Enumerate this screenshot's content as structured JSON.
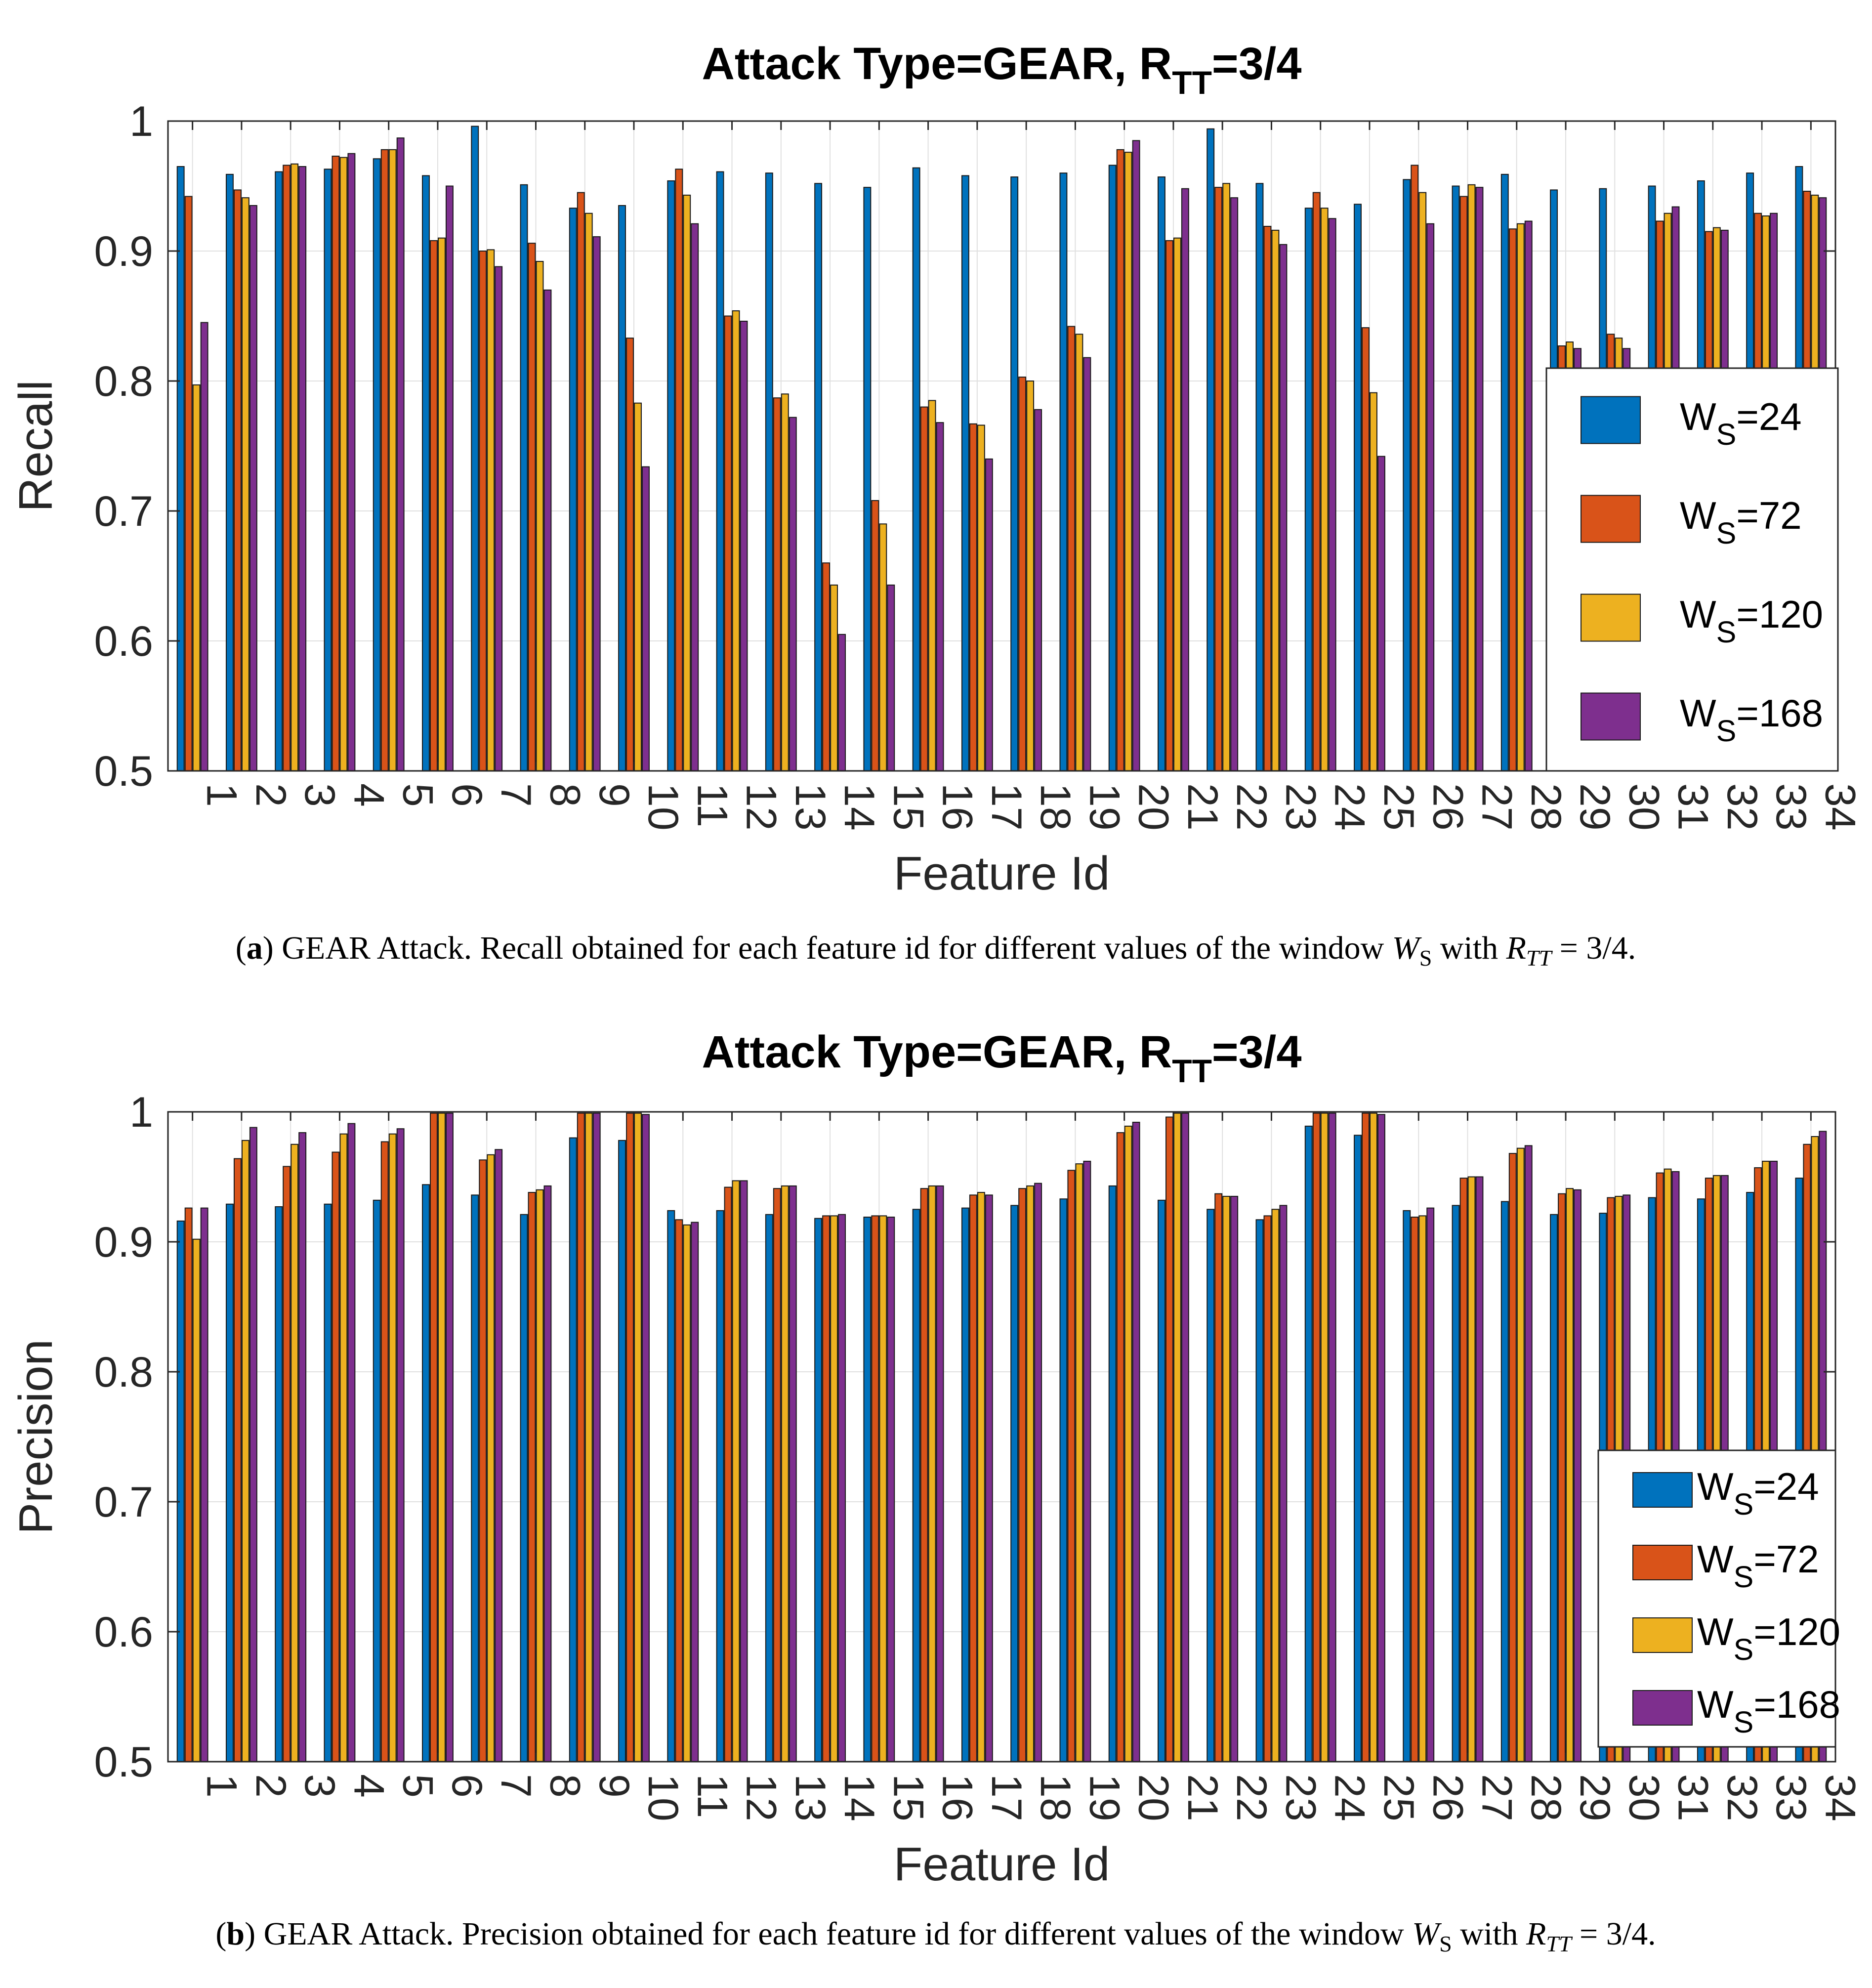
{
  "figures": [
    {
      "title": "Attack Type=GEAR, R",
      "title_sub": "TT",
      "title_tail": "=3/4",
      "caption_label": "(a)",
      "caption_label_letter": "a",
      "caption_text": " GEAR Attack. Recall obtained for each feature id for different values of the window ",
      "caption_ws": "W",
      "caption_ws_sub": "S",
      "caption_with": " with ",
      "caption_r": "R",
      "caption_r_sub": "TT",
      "caption_eq": " = 3/4."
    },
    {
      "title": "Attack Type=GEAR, R",
      "title_sub": "TT",
      "title_tail": "=3/4",
      "caption_label": "(b)",
      "caption_label_letter": "b",
      "caption_text": " GEAR Attack. Precision obtained for each feature id for different values of the window ",
      "caption_ws": "W",
      "caption_ws_sub": "S",
      "caption_with": " with ",
      "caption_r": "R",
      "caption_r_sub": "TT",
      "caption_eq": " = 3/4."
    }
  ],
  "colors": {
    "s24": "#0072BD",
    "s72": "#D95319",
    "s120": "#EDB120",
    "s168": "#7E2F8E",
    "grid": "#e0e0e0",
    "axis": "#262626"
  },
  "chart_data": [
    {
      "type": "bar",
      "title": "Attack Type=GEAR, RTT=3/4",
      "xlabel": "Feature Id",
      "ylabel": "Recall",
      "ylim": [
        0.5,
        1
      ],
      "yticks": [
        "0.5",
        "0.6",
        "0.7",
        "0.8",
        "0.9",
        "1"
      ],
      "grid": true,
      "legend_position": "right",
      "categories": [
        "1",
        "2",
        "3",
        "4",
        "5",
        "6",
        "7",
        "8",
        "9",
        "10",
        "11",
        "12",
        "13",
        "14",
        "15",
        "16",
        "17",
        "18",
        "19",
        "20",
        "21",
        "22",
        "23",
        "24",
        "25",
        "26",
        "27",
        "28",
        "29",
        "30",
        "31",
        "32",
        "33",
        "34"
      ],
      "series": [
        {
          "name": "WS=24",
          "label_main": "W",
          "label_sub": "S",
          "label_tail": "=24",
          "color_key": "s24",
          "values": [
            0.965,
            0.959,
            0.961,
            0.963,
            0.971,
            0.958,
            0.996,
            0.951,
            0.933,
            0.935,
            0.954,
            0.961,
            0.96,
            0.952,
            0.949,
            0.964,
            0.958,
            0.957,
            0.96,
            0.966,
            0.957,
            0.994,
            0.952,
            0.933,
            0.936,
            0.955,
            0.95,
            0.959,
            0.947,
            0.948,
            0.95,
            0.954,
            0.96,
            0.965
          ]
        },
        {
          "name": "WS=72",
          "label_main": "W",
          "label_sub": "S",
          "label_tail": "=72",
          "color_key": "s72",
          "values": [
            0.942,
            0.947,
            0.966,
            0.973,
            0.978,
            0.908,
            0.9,
            0.906,
            0.945,
            0.833,
            0.963,
            0.85,
            0.787,
            0.66,
            0.708,
            0.78,
            0.767,
            0.803,
            0.842,
            0.978,
            0.908,
            0.949,
            0.919,
            0.945,
            0.841,
            0.966,
            0.942,
            0.917,
            0.827,
            0.836,
            0.923,
            0.915,
            0.929,
            0.946
          ]
        },
        {
          "name": "WS=120",
          "label_main": "W",
          "label_sub": "S",
          "label_tail": "=120",
          "color_key": "s120",
          "values": [
            0.797,
            0.941,
            0.967,
            0.972,
            0.978,
            0.91,
            0.901,
            0.892,
            0.929,
            0.783,
            0.943,
            0.854,
            0.79,
            0.643,
            0.69,
            0.785,
            0.766,
            0.8,
            0.836,
            0.976,
            0.91,
            0.952,
            0.916,
            0.933,
            0.791,
            0.945,
            0.951,
            0.921,
            0.83,
            0.833,
            0.929,
            0.918,
            0.927,
            0.943
          ]
        },
        {
          "name": "WS=168",
          "label_main": "W",
          "label_sub": "S",
          "label_tail": "=168",
          "color_key": "s168",
          "values": [
            0.845,
            0.935,
            0.965,
            0.975,
            0.987,
            0.95,
            0.888,
            0.87,
            0.911,
            0.734,
            0.921,
            0.846,
            0.772,
            0.605,
            0.643,
            0.768,
            0.74,
            0.778,
            0.818,
            0.985,
            0.948,
            0.941,
            0.905,
            0.925,
            0.742,
            0.921,
            0.949,
            0.923,
            0.825,
            0.825,
            0.934,
            0.916,
            0.929,
            0.941
          ]
        }
      ]
    },
    {
      "type": "bar",
      "title": "Attack Type=GEAR, RTT=3/4",
      "xlabel": "Feature Id",
      "ylabel": "Precision",
      "ylim": [
        0.5,
        1
      ],
      "yticks": [
        "0.5",
        "0.6",
        "0.7",
        "0.8",
        "0.9",
        "1"
      ],
      "grid": true,
      "legend_position": "right",
      "categories": [
        "1",
        "2",
        "3",
        "4",
        "5",
        "6",
        "7",
        "8",
        "9",
        "10",
        "11",
        "12",
        "13",
        "14",
        "15",
        "16",
        "17",
        "18",
        "19",
        "20",
        "21",
        "22",
        "23",
        "24",
        "25",
        "26",
        "27",
        "28",
        "29",
        "30",
        "31",
        "32",
        "33",
        "34"
      ],
      "series": [
        {
          "name": "WS=24",
          "label_main": "W",
          "label_sub": "S",
          "label_tail": "=24",
          "color_key": "s24",
          "values": [
            0.916,
            0.929,
            0.927,
            0.929,
            0.932,
            0.944,
            0.936,
            0.921,
            0.98,
            0.978,
            0.924,
            0.924,
            0.921,
            0.918,
            0.919,
            0.925,
            0.926,
            0.928,
            0.933,
            0.943,
            0.932,
            0.925,
            0.917,
            0.989,
            0.982,
            0.924,
            0.928,
            0.931,
            0.921,
            0.922,
            0.934,
            0.933,
            0.938,
            0.949
          ]
        },
        {
          "name": "WS=72",
          "label_main": "W",
          "label_sub": "S",
          "label_tail": "=72",
          "color_key": "s72",
          "values": [
            0.926,
            0.964,
            0.958,
            0.969,
            0.977,
            0.999,
            0.963,
            0.938,
            0.999,
            0.999,
            0.917,
            0.942,
            0.941,
            0.92,
            0.92,
            0.941,
            0.936,
            0.941,
            0.955,
            0.984,
            0.996,
            0.937,
            0.92,
            0.999,
            0.999,
            0.919,
            0.949,
            0.968,
            0.937,
            0.934,
            0.953,
            0.949,
            0.957,
            0.975
          ]
        },
        {
          "name": "WS=120",
          "label_main": "W",
          "label_sub": "S",
          "label_tail": "=120",
          "color_key": "s120",
          "values": [
            0.902,
            0.978,
            0.975,
            0.983,
            0.983,
            0.999,
            0.967,
            0.94,
            0.999,
            0.999,
            0.913,
            0.947,
            0.943,
            0.92,
            0.92,
            0.943,
            0.938,
            0.943,
            0.96,
            0.989,
            0.999,
            0.935,
            0.925,
            0.999,
            0.999,
            0.92,
            0.95,
            0.972,
            0.941,
            0.935,
            0.956,
            0.951,
            0.962,
            0.981
          ]
        },
        {
          "name": "WS=168",
          "label_main": "W",
          "label_sub": "S",
          "label_tail": "=168",
          "color_key": "s168",
          "values": [
            0.926,
            0.988,
            0.984,
            0.991,
            0.987,
            0.999,
            0.971,
            0.943,
            0.999,
            0.998,
            0.915,
            0.947,
            0.943,
            0.921,
            0.919,
            0.943,
            0.936,
            0.945,
            0.962,
            0.992,
            0.999,
            0.935,
            0.928,
            0.999,
            0.998,
            0.926,
            0.95,
            0.974,
            0.94,
            0.936,
            0.954,
            0.951,
            0.962,
            0.985
          ]
        }
      ]
    }
  ]
}
